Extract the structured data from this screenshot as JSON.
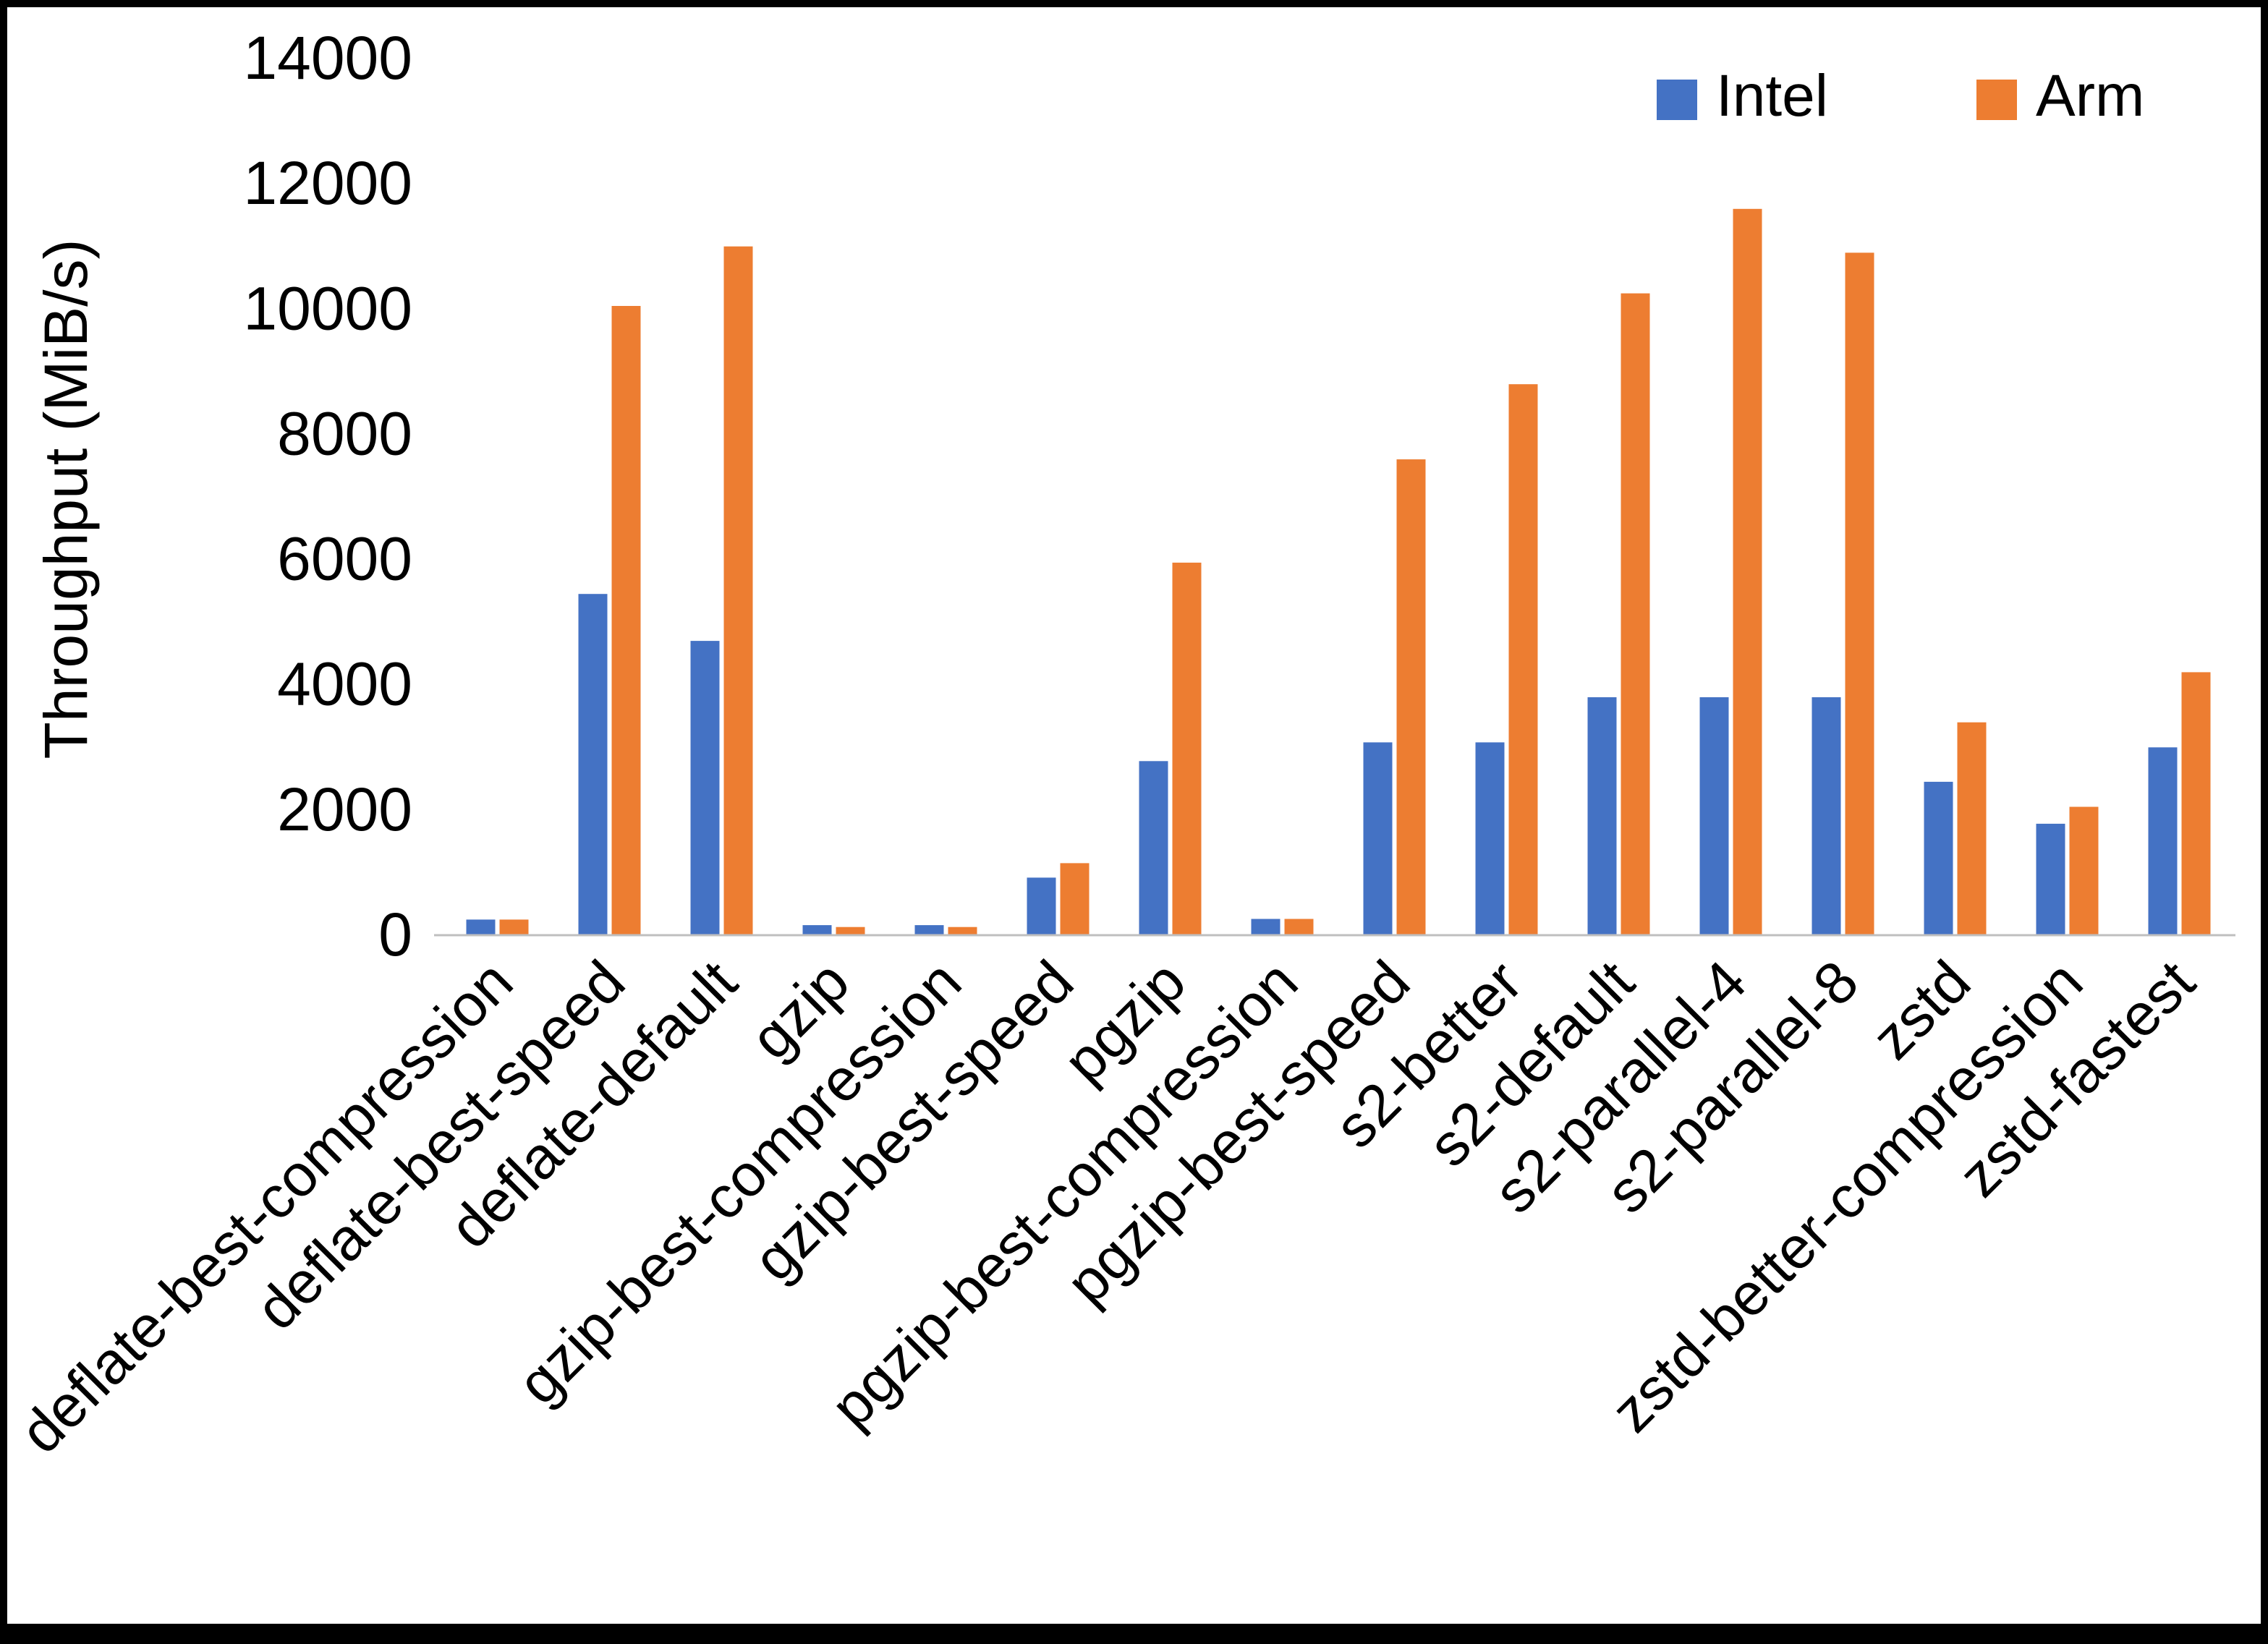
{
  "chart_data": {
    "type": "bar",
    "title": "",
    "xlabel": "",
    "ylabel": "Throughput (MiB/s)",
    "ylim": [
      0,
      14000
    ],
    "ytick_step": 2000,
    "yticks": [
      0,
      2000,
      4000,
      6000,
      8000,
      10000,
      12000,
      14000
    ],
    "grid": false,
    "legend_position": "top-right",
    "categories": [
      "deflate-best-compression",
      "deflate-best-speed",
      "deflate-default",
      "gzip",
      "gzip-best-compression",
      "gzip-best-speed",
      "pgzip",
      "pgzip-best-compression",
      "pgzip-best-speed",
      "s2-better",
      "s2-default",
      "s2-parallel-4",
      "s2-parallel-8",
      "zstd",
      "zstd-better-compression",
      "zstd-fastest"
    ],
    "series": [
      {
        "name": "Intel",
        "color": "#4472C4",
        "values": [
          250,
          5450,
          4700,
          160,
          160,
          920,
          2780,
          260,
          3080,
          3080,
          3800,
          3800,
          3800,
          2450,
          1780,
          3000
        ]
      },
      {
        "name": "Arm",
        "color": "#ED7D31",
        "values": [
          250,
          10050,
          11000,
          130,
          130,
          1150,
          5950,
          260,
          7600,
          8800,
          10250,
          11600,
          10900,
          3400,
          2050,
          4200
        ]
      }
    ],
    "axis_color": "#BFBFBF",
    "text_color": "#000000"
  }
}
